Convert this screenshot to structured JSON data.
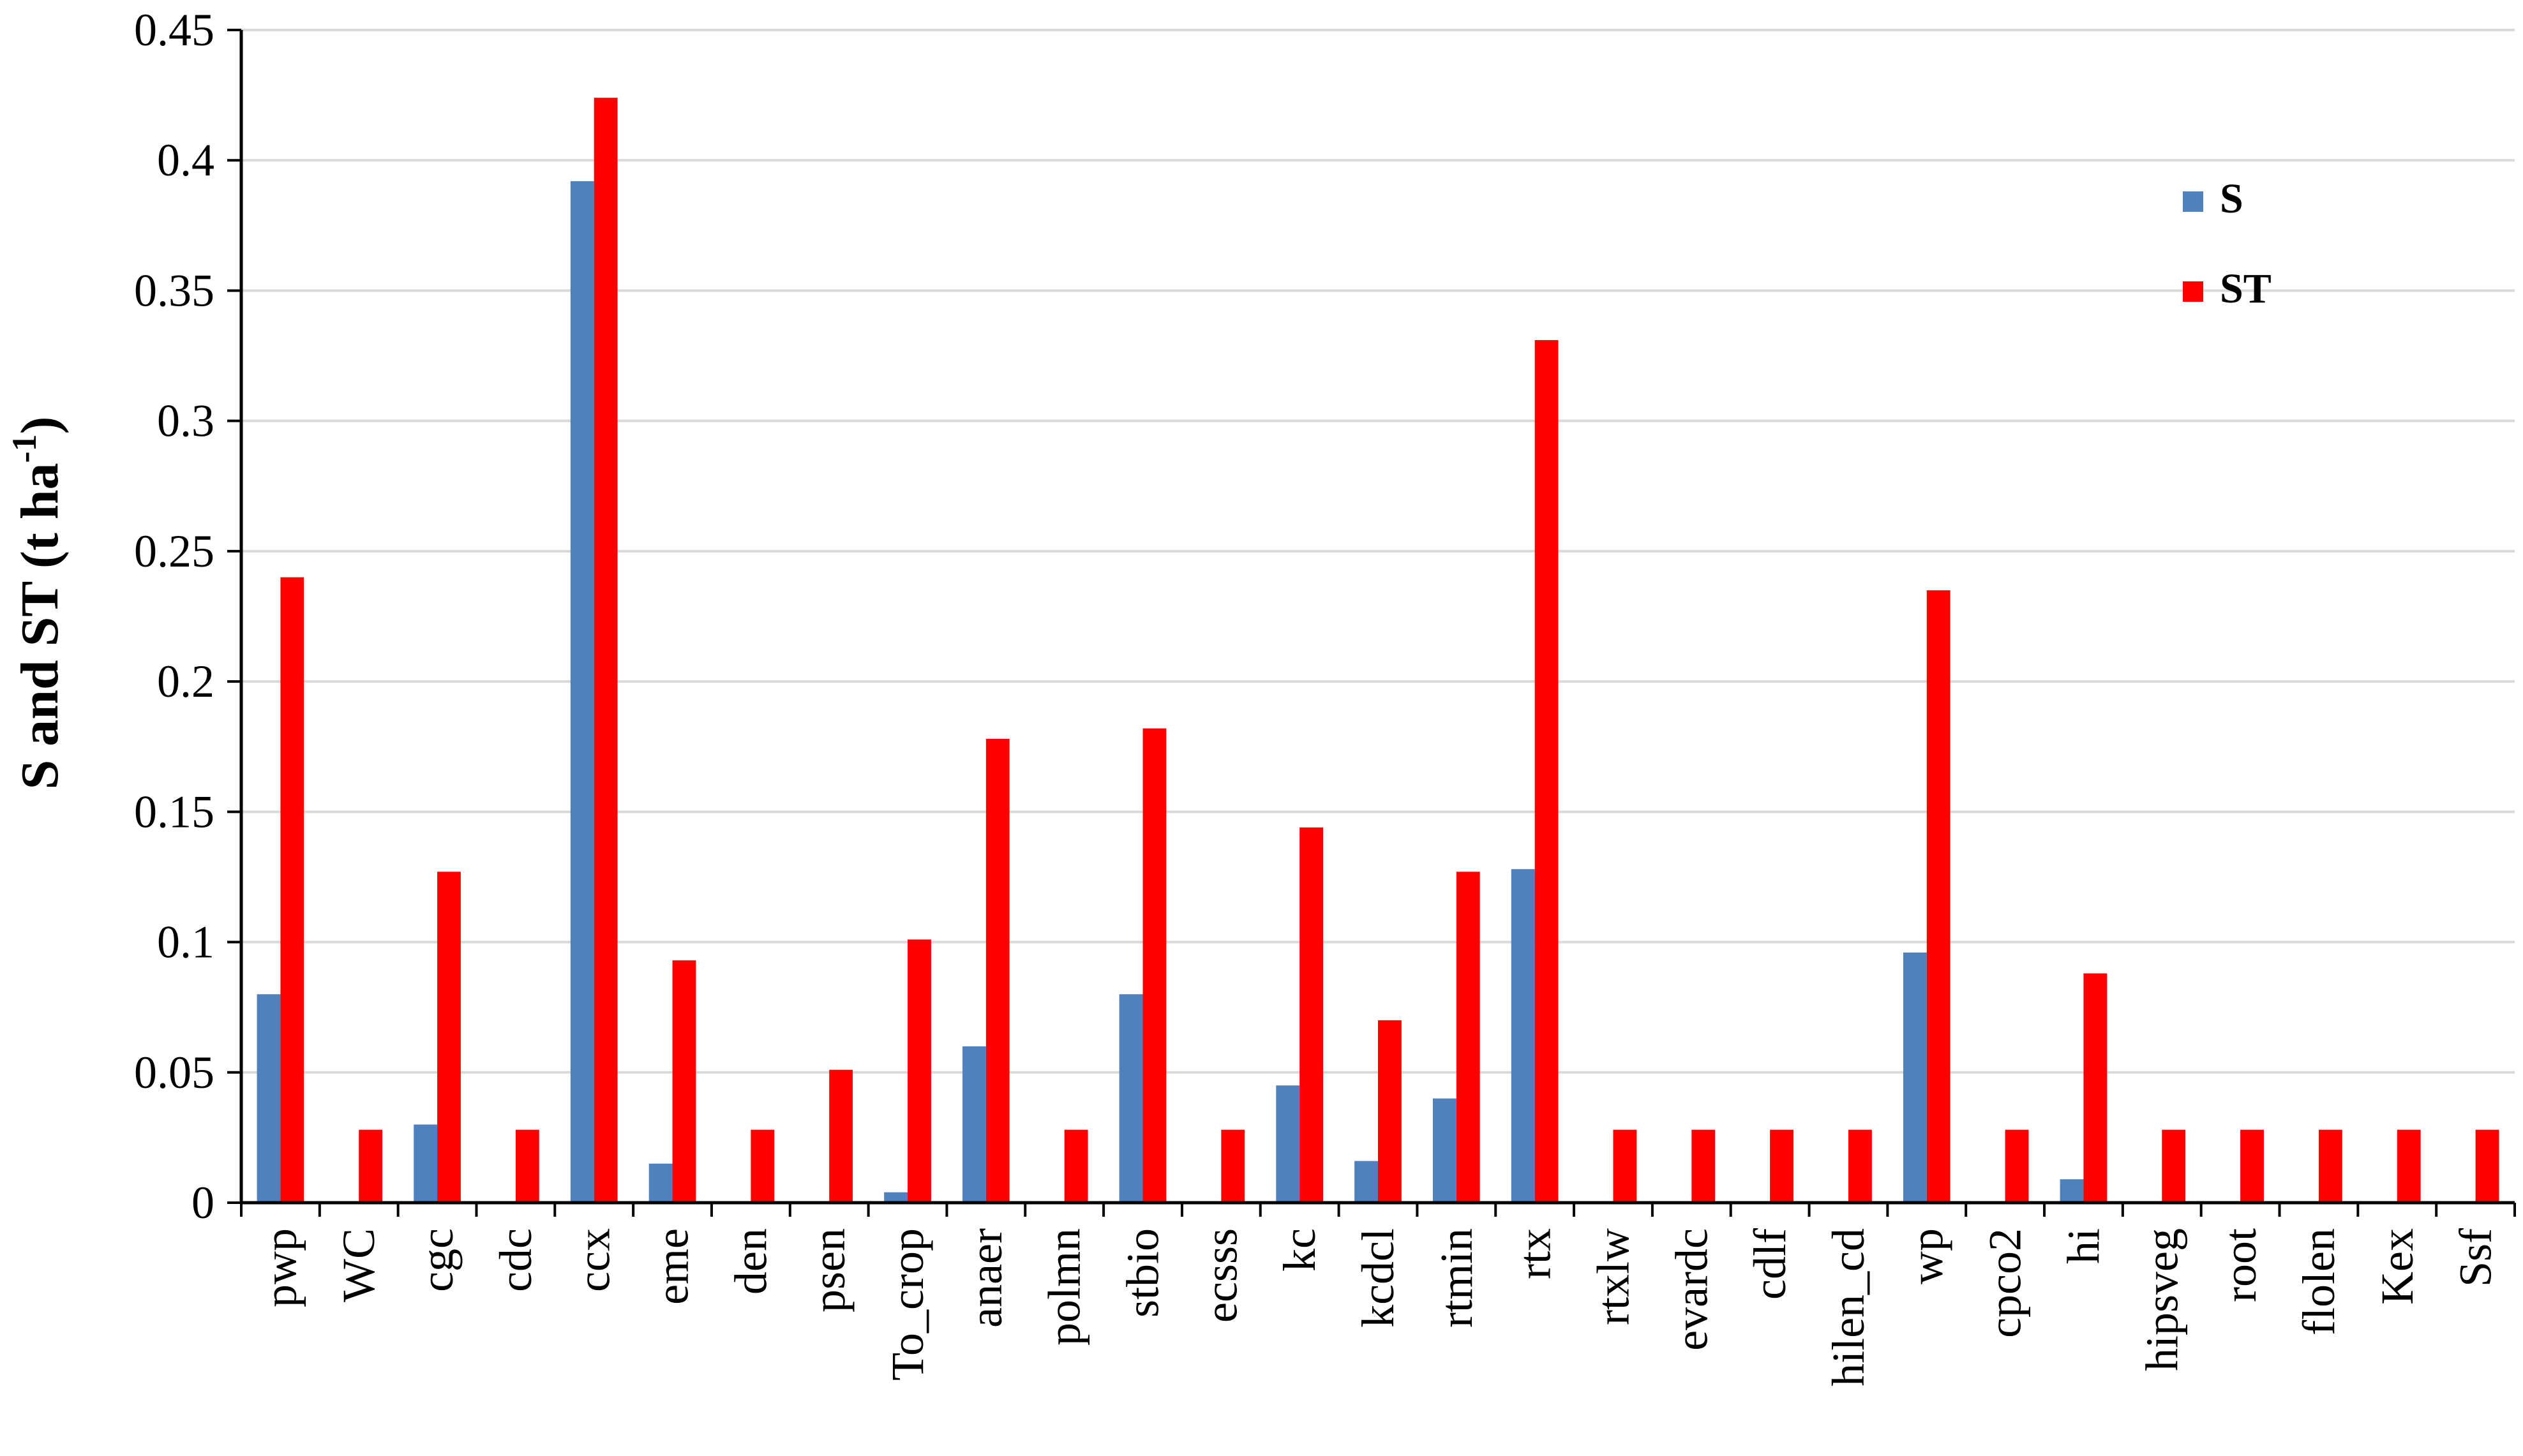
{
  "chart_data": {
    "type": "bar",
    "title": "",
    "xlabel": "",
    "ylabel": "S and ST (t ha",
    "ylabel_superscript": "-1",
    "ylabel_close": ")",
    "ylim": [
      0,
      0.45
    ],
    "yticks": [
      "0",
      "0.05",
      "0.1",
      "0.15",
      "0.2",
      "0.25",
      "0.3",
      "0.35",
      "0.4",
      "0.45"
    ],
    "grid": true,
    "legend_position": "top-right",
    "categories": [
      "pwp",
      "WC",
      "cgc",
      "cdc",
      "ccx",
      "eme",
      "den",
      "psen",
      "To_crop",
      "anaer",
      "polmn",
      "stbio",
      "ecsss",
      "kc",
      "kcdcl",
      "rtmin",
      "rtx",
      "rtxlw",
      "evardc",
      "cdlf",
      "hilen_cd",
      "wp",
      "cpco2",
      "hi",
      "hipsveg",
      "root",
      "flolen",
      "Kex",
      "Ssf"
    ],
    "series": [
      {
        "name": "S",
        "color": "#4f81bd",
        "values": [
          0.08,
          0,
          0.03,
          0,
          0.392,
          0.015,
          0,
          0,
          0.004,
          0.06,
          0,
          0.08,
          0,
          0.045,
          0.016,
          0.04,
          0.128,
          0,
          0,
          0,
          0,
          0.096,
          0,
          0.009,
          0,
          0,
          0,
          0,
          0
        ]
      },
      {
        "name": "ST",
        "color": "#ff0000",
        "values": [
          0.24,
          0.028,
          0.127,
          0.028,
          0.424,
          0.093,
          0.028,
          0.051,
          0.101,
          0.178,
          0.028,
          0.182,
          0.028,
          0.144,
          0.07,
          0.127,
          0.331,
          0.028,
          0.028,
          0.028,
          0.028,
          0.235,
          0.028,
          0.088,
          0.028,
          0.028,
          0.028,
          0.028,
          0.028
        ]
      }
    ]
  }
}
